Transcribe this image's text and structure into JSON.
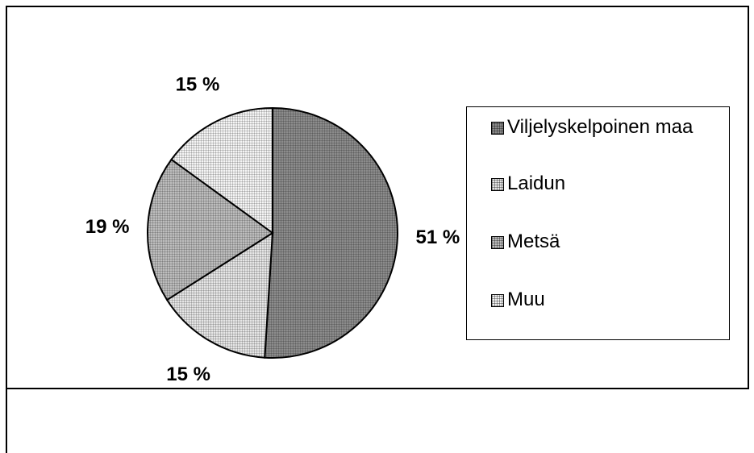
{
  "chart_data": {
    "type": "pie",
    "categories": [
      "Viljelyskelpoinen maa",
      "Laidun",
      "Metsä",
      "Muu"
    ],
    "values": [
      51,
      15,
      19,
      15
    ],
    "value_labels": [
      "51 %",
      "15 %",
      "19 %",
      "15 %"
    ],
    "colors": [
      "#8c8c8c",
      "#e6e6e6",
      "#bdbdbd",
      "#f5f5f5"
    ],
    "legend": "right"
  }
}
